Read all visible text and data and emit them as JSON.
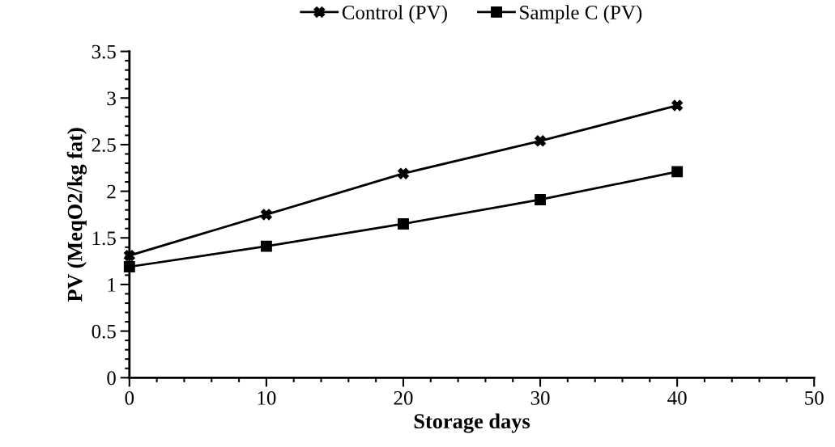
{
  "chart_data": {
    "type": "line",
    "xlabel": "Storage days",
    "ylabel": "PV (MeqO2/kg fat)",
    "x": [
      0,
      10,
      20,
      30,
      40
    ],
    "series": [
      {
        "name": "Control (PV)",
        "color": "#000000",
        "marker": "cross",
        "values": [
          1.31,
          1.75,
          2.19,
          2.54,
          2.92
        ]
      },
      {
        "name": "Sample C (PV)",
        "color": "#000000",
        "marker": "square",
        "values": [
          1.19,
          1.41,
          1.65,
          1.91,
          2.21
        ]
      }
    ],
    "xlim": [
      0,
      50
    ],
    "xticks": [
      0,
      10,
      20,
      30,
      40,
      50
    ],
    "ylim": [
      0,
      3.5
    ],
    "yticks": [
      0,
      0.5,
      1,
      1.5,
      2,
      2.5,
      3,
      3.5
    ],
    "grid": false,
    "legend": "top",
    "line_style": "solid"
  }
}
